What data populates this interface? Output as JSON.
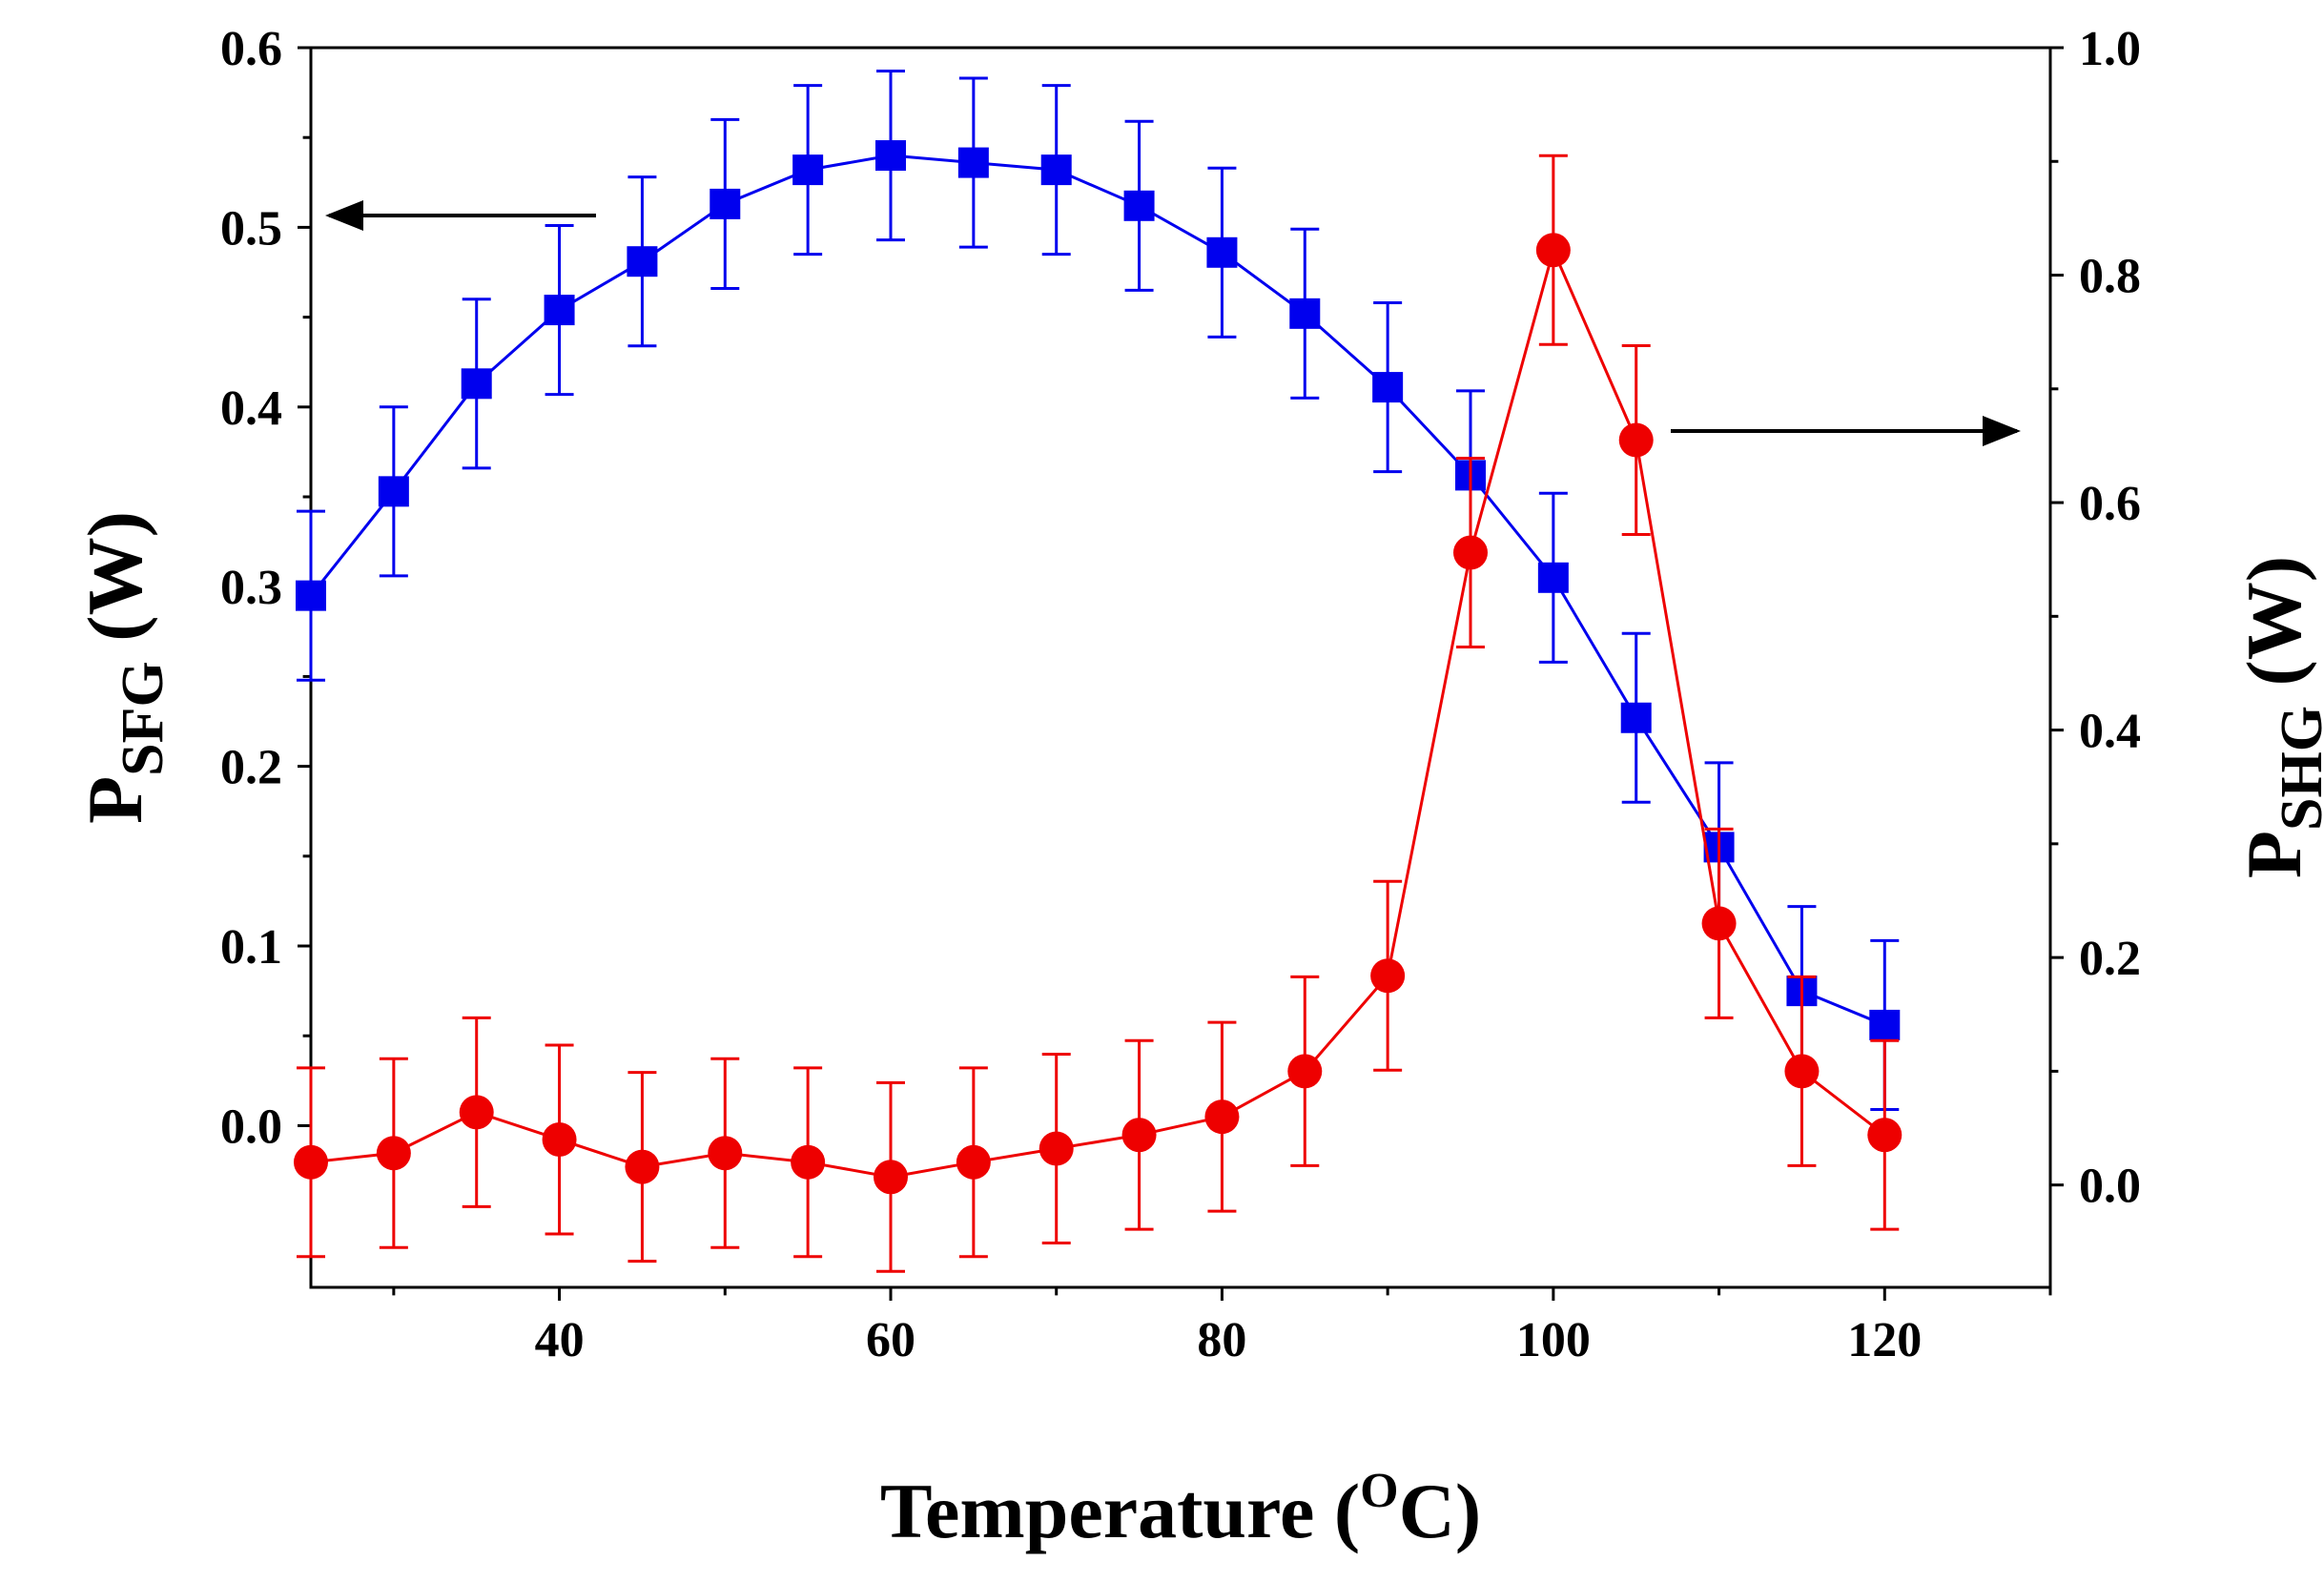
{
  "chart_data": {
    "type": "line",
    "xlabel": "Temperature",
    "xlabel_unit_open": "(",
    "xlabel_unit_sup": "O",
    "xlabel_unit_rest": "C)",
    "ylabel_left": {
      "main": "P",
      "sub": "SFG",
      "unit": " (W)"
    },
    "ylabel_right": {
      "main": "P",
      "sub": "SHG",
      "unit": " (W)"
    },
    "x": [
      25,
      30,
      35,
      40,
      45,
      50,
      55,
      60,
      65,
      70,
      75,
      80,
      85,
      90,
      95,
      100,
      105,
      110,
      115,
      120
    ],
    "xlim": [
      25,
      130
    ],
    "xticks": [
      "40",
      "60",
      "80",
      "100",
      "120"
    ],
    "ylim_left": [
      -0.09,
      0.6
    ],
    "yticks_left": [
      "0.0",
      "0.1",
      "0.2",
      "0.3",
      "0.4",
      "0.5",
      "0.6"
    ],
    "ylim_right": [
      -0.09,
      1.0
    ],
    "yticks_right": [
      "0.0",
      "0.2",
      "0.4",
      "0.6",
      "0.8",
      "1.0"
    ],
    "series": [
      {
        "name": "P_SFG",
        "axis": "left",
        "color": "#0000ee",
        "marker": "square",
        "values": [
          0.295,
          0.353,
          0.413,
          0.454,
          0.481,
          0.513,
          0.532,
          0.54,
          0.536,
          0.532,
          0.512,
          0.486,
          0.452,
          0.411,
          0.362,
          0.305,
          0.227,
          0.155,
          0.075,
          0.056
        ],
        "error": 0.047
      },
      {
        "name": "P_SHG",
        "axis": "right",
        "color": "#ee0000",
        "marker": "circle",
        "values": [
          0.02,
          0.028,
          0.064,
          0.04,
          0.016,
          0.028,
          0.02,
          0.007,
          0.02,
          0.032,
          0.044,
          0.06,
          0.1,
          0.184,
          0.556,
          0.822,
          0.655,
          0.23,
          0.1,
          0.044
        ],
        "error": 0.083
      }
    ],
    "annotations": [
      {
        "text": "arrow pointing to left axis",
        "target": "P_SFG"
      },
      {
        "text": "arrow pointing to right axis",
        "target": "P_SHG"
      }
    ]
  }
}
